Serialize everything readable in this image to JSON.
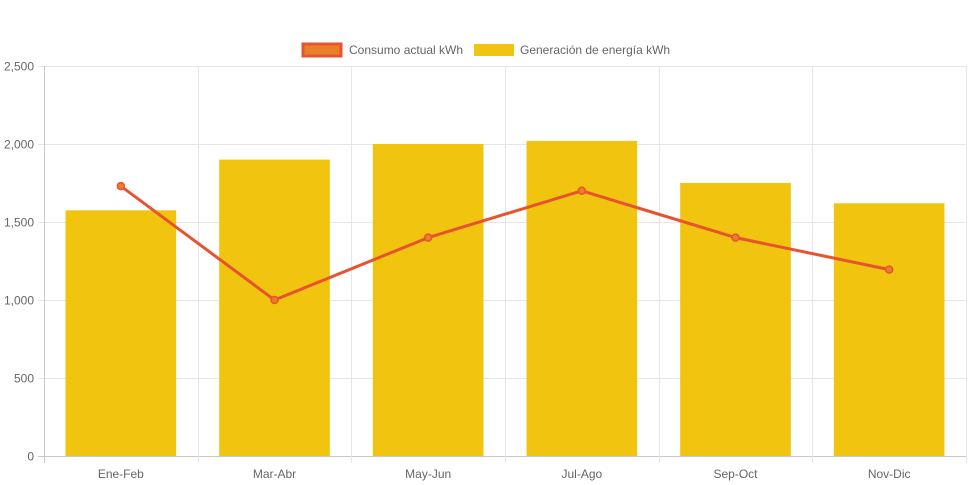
{
  "chart_data": {
    "type": "bar",
    "categories": [
      "Ene-Feb",
      "Mar-Abr",
      "May-Jun",
      "Jul-Ago",
      "Sep-Oct",
      "Nov-Dic"
    ],
    "series": [
      {
        "name": "Consumo actual kWh",
        "type": "line",
        "values": [
          1730,
          1000,
          1400,
          1700,
          1400,
          1195
        ],
        "color": "#e8532f",
        "fill_color": "#e8802a"
      },
      {
        "name": "Generación de energía kWh",
        "type": "bar",
        "values": [
          1575,
          1900,
          2000,
          2020,
          1750,
          1620
        ],
        "color": "#f1c40f"
      }
    ],
    "ylim": [
      0,
      2500
    ],
    "yticks": [
      0,
      500,
      1000,
      1500,
      2000,
      2500
    ],
    "ytick_labels": [
      "0",
      "500",
      "1,000",
      "1,500",
      "2,000",
      "2,500"
    ],
    "grid": true,
    "legend_position": "top",
    "title": "",
    "xlabel": "",
    "ylabel": ""
  }
}
